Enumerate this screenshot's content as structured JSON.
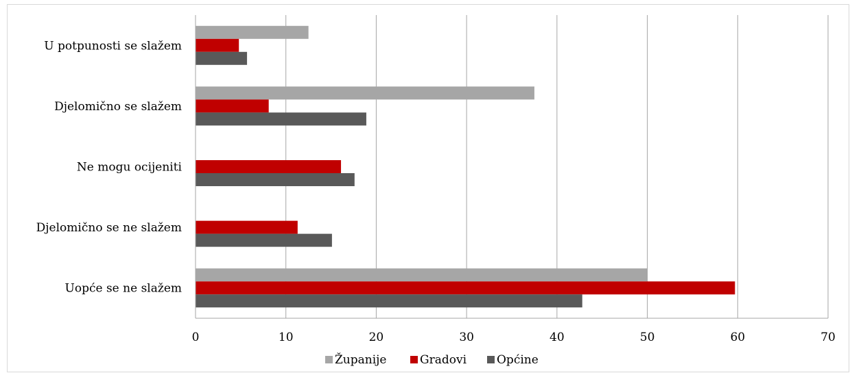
{
  "chart_data": {
    "type": "bar",
    "orientation": "horizontal",
    "categories": [
      "U potpunosti se slažem",
      "Djelomično se slažem",
      "Ne mogu ocijeniti",
      "Djelomično se ne slažem",
      "Uopće se ne slažem"
    ],
    "series": [
      {
        "name": "Županije",
        "color": "#a6a6a6",
        "values": [
          12.5,
          37.5,
          0,
          0,
          50
        ]
      },
      {
        "name": "Gradovi",
        "color": "#c00000",
        "values": [
          4.8,
          8.1,
          16.1,
          11.3,
          59.7
        ]
      },
      {
        "name": "Općine",
        "color": "#595959",
        "values": [
          5.7,
          18.9,
          17.6,
          15.1,
          42.8
        ]
      }
    ],
    "xlim": [
      0,
      70
    ],
    "xticks": [
      "0",
      "10",
      "20",
      "30",
      "40",
      "50",
      "60",
      "70"
    ],
    "grid": "vertical",
    "legend_position": "bottom"
  }
}
